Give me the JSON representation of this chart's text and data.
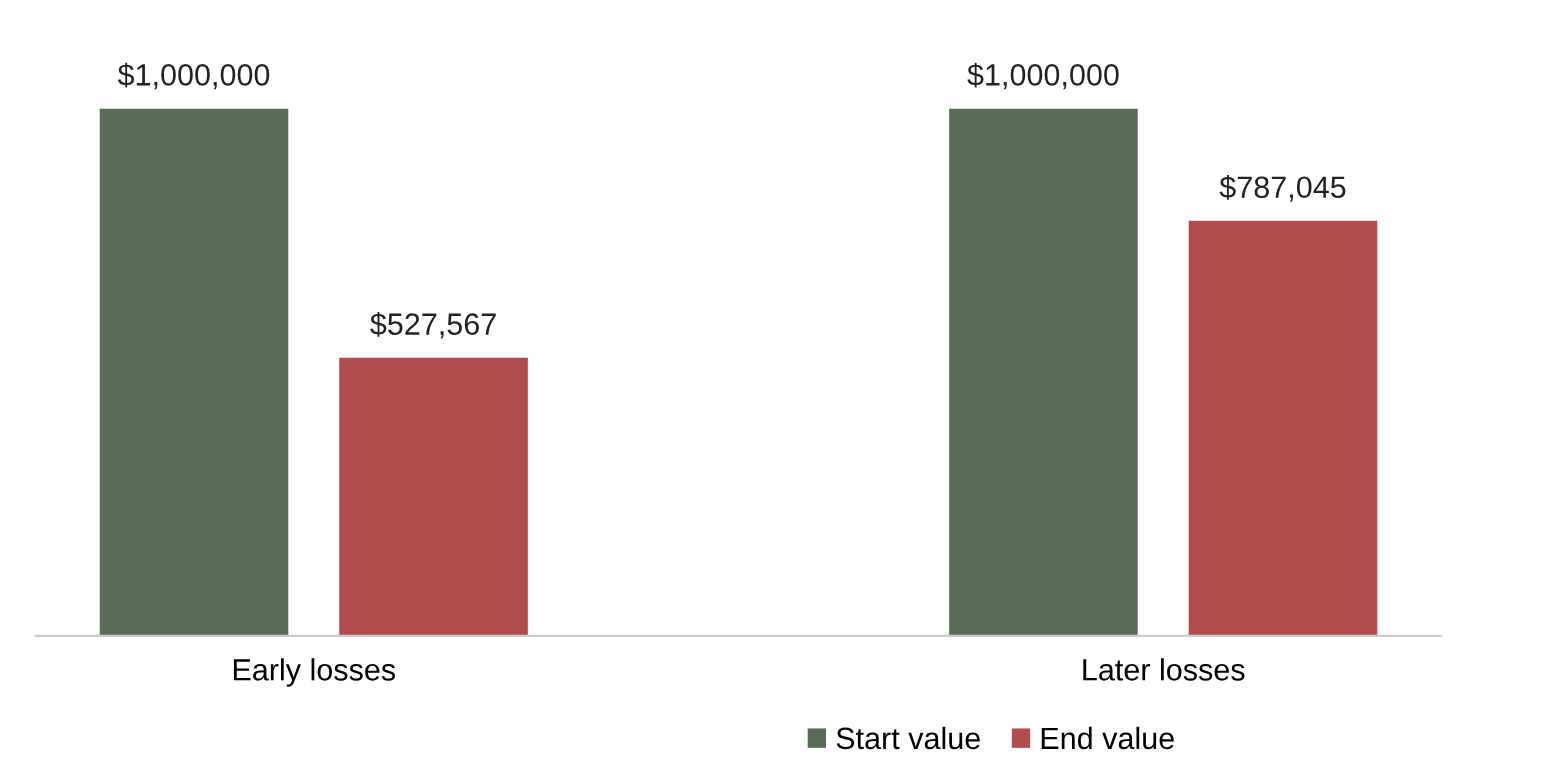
{
  "chart_data": {
    "type": "bar",
    "categories": [
      "Early losses",
      "Later losses"
    ],
    "series": [
      {
        "name": "Start value",
        "color": "#5a6b58",
        "values": [
          1000000,
          1000000
        ],
        "value_labels": [
          "$1,000,000",
          "$1,000,000"
        ]
      },
      {
        "name": "End value",
        "color": "#b04c4e",
        "values": [
          527567,
          787045
        ],
        "value_labels": [
          "$527,567",
          "$787,045"
        ]
      }
    ],
    "legend": "bottom",
    "grid": false
  }
}
